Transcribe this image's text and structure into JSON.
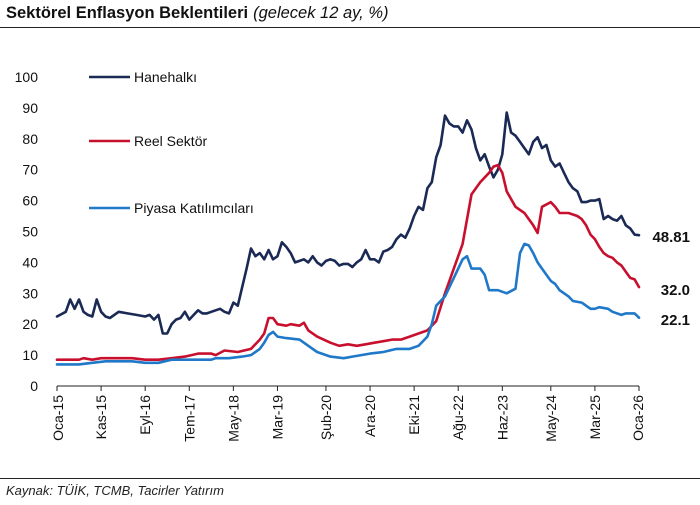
{
  "header": {
    "title": "Sektörel Enflasyon Beklentileri",
    "subtitle": "(gelecek 12 ay, %)"
  },
  "footer": {
    "source": "Kaynak: TÜİK, TCMB, Tacirler Yatırım"
  },
  "colors": {
    "hanehalki": "#1b2a55",
    "reel_sektor": "#c8102e",
    "piyasa": "#1f78c8",
    "axis": "#222222"
  },
  "chart_data": {
    "type": "line",
    "title": "Sektörel Enflasyon Beklentileri",
    "ylim": [
      0,
      100
    ],
    "yticks": [
      0,
      10,
      20,
      30,
      40,
      50,
      60,
      70,
      80,
      90,
      100
    ],
    "xlim": [
      "2015-01",
      "2026-01"
    ],
    "xticks": [
      "Oca-15",
      "Kas-15",
      "Eyl-16",
      "Tem-17",
      "May-18",
      "Mar-19",
      "Şub-20",
      "Ara-20",
      "Eki-21",
      "Ağu-22",
      "Haz-23",
      "May-24",
      "Mar-25",
      "Oca-26"
    ],
    "legend_position": "top-left",
    "grid": false,
    "series": [
      {
        "name": "Hanehalkı",
        "color": "#1b2a55",
        "end_label": "48.81",
        "points": [
          [
            "2015-01",
            22.5
          ],
          [
            "2015-03",
            24
          ],
          [
            "2015-04",
            28
          ],
          [
            "2015-05",
            25
          ],
          [
            "2015-06",
            28
          ],
          [
            "2015-07",
            24
          ],
          [
            "2015-08",
            23
          ],
          [
            "2015-09",
            22.5
          ],
          [
            "2015-10",
            28
          ],
          [
            "2015-11",
            24
          ],
          [
            "2015-12",
            22.5
          ],
          [
            "2016-01",
            22
          ],
          [
            "2016-03",
            24
          ],
          [
            "2016-05",
            23.5
          ],
          [
            "2016-07",
            23
          ],
          [
            "2016-09",
            22.5
          ],
          [
            "2016-10",
            23
          ],
          [
            "2016-11",
            21.5
          ],
          [
            "2016-12",
            23
          ],
          [
            "2017-01",
            17
          ],
          [
            "2017-02",
            17
          ],
          [
            "2017-03",
            20
          ],
          [
            "2017-04",
            21.5
          ],
          [
            "2017-05",
            22
          ],
          [
            "2017-06",
            24
          ],
          [
            "2017-07",
            21.5
          ],
          [
            "2017-08",
            23
          ],
          [
            "2017-09",
            24.5
          ],
          [
            "2017-10",
            23.5
          ],
          [
            "2017-11",
            23.5
          ],
          [
            "2017-12",
            24
          ],
          [
            "2018-02",
            25
          ],
          [
            "2018-03",
            24
          ],
          [
            "2018-04",
            23.5
          ],
          [
            "2018-05",
            27
          ],
          [
            "2018-06",
            26
          ],
          [
            "2018-07",
            32
          ],
          [
            "2018-08",
            38
          ],
          [
            "2018-09",
            44.5
          ],
          [
            "2018-10",
            42
          ],
          [
            "2018-11",
            43
          ],
          [
            "2018-12",
            41
          ],
          [
            "2019-01",
            44
          ],
          [
            "2019-02",
            41
          ],
          [
            "2019-03",
            42
          ],
          [
            "2019-04",
            46.5
          ],
          [
            "2019-05",
            45
          ],
          [
            "2019-06",
            43
          ],
          [
            "2019-07",
            40
          ],
          [
            "2019-08",
            40.5
          ],
          [
            "2019-09",
            41
          ],
          [
            "2019-10",
            40
          ],
          [
            "2019-11",
            42
          ],
          [
            "2019-12",
            40
          ],
          [
            "2020-01",
            39
          ],
          [
            "2020-02",
            40.5
          ],
          [
            "2020-03",
            41
          ],
          [
            "2020-04",
            40.5
          ],
          [
            "2020-05",
            39
          ],
          [
            "2020-06",
            39.5
          ],
          [
            "2020-07",
            39.5
          ],
          [
            "2020-08",
            38.5
          ],
          [
            "2020-09",
            40
          ],
          [
            "2020-10",
            41
          ],
          [
            "2020-11",
            44
          ],
          [
            "2020-12",
            41
          ],
          [
            "2021-01",
            41
          ],
          [
            "2021-02",
            40
          ],
          [
            "2021-03",
            43.5
          ],
          [
            "2021-04",
            44
          ],
          [
            "2021-05",
            45
          ],
          [
            "2021-06",
            47.5
          ],
          [
            "2021-07",
            49
          ],
          [
            "2021-08",
            48
          ],
          [
            "2021-09",
            51
          ],
          [
            "2021-10",
            55
          ],
          [
            "2021-11",
            58
          ],
          [
            "2021-12",
            57
          ],
          [
            "2022-01",
            64
          ],
          [
            "2022-02",
            66
          ],
          [
            "2022-03",
            74
          ],
          [
            "2022-04",
            78
          ],
          [
            "2022-05",
            87.5
          ],
          [
            "2022-06",
            85
          ],
          [
            "2022-07",
            84
          ],
          [
            "2022-08",
            84
          ],
          [
            "2022-09",
            82
          ],
          [
            "2022-10",
            86
          ],
          [
            "2022-11",
            83
          ],
          [
            "2022-12",
            77
          ],
          [
            "2023-01",
            73
          ],
          [
            "2023-02",
            75
          ],
          [
            "2023-03",
            71
          ],
          [
            "2023-04",
            67.5
          ],
          [
            "2023-05",
            70
          ],
          [
            "2023-06",
            75
          ],
          [
            "2023-07",
            88.5
          ],
          [
            "2023-08",
            82
          ],
          [
            "2023-09",
            81
          ],
          [
            "2023-10",
            79
          ],
          [
            "2023-11",
            77
          ],
          [
            "2023-12",
            75
          ],
          [
            "2024-01",
            79
          ],
          [
            "2024-02",
            80.5
          ],
          [
            "2024-03",
            77
          ],
          [
            "2024-04",
            78
          ],
          [
            "2024-05",
            73
          ],
          [
            "2024-06",
            71
          ],
          [
            "2024-07",
            72
          ],
          [
            "2024-08",
            69
          ],
          [
            "2024-09",
            66
          ],
          [
            "2024-10",
            64
          ],
          [
            "2024-11",
            63
          ],
          [
            "2024-12",
            59.5
          ],
          [
            "2025-01",
            59.5
          ],
          [
            "2025-02",
            60
          ],
          [
            "2025-03",
            60
          ],
          [
            "2025-04",
            60.5
          ],
          [
            "2025-05",
            54
          ],
          [
            "2025-06",
            55
          ],
          [
            "2025-07",
            54
          ],
          [
            "2025-08",
            53.5
          ],
          [
            "2025-09",
            55
          ],
          [
            "2025-10",
            52
          ],
          [
            "2025-11",
            51
          ],
          [
            "2025-12",
            49
          ],
          [
            "2026-01",
            48.81
          ]
        ]
      },
      {
        "name": "Reel Sektör",
        "color": "#c8102e",
        "end_label": "32.0",
        "points": [
          [
            "2015-01",
            8.5
          ],
          [
            "2015-06",
            8.5
          ],
          [
            "2015-07",
            9
          ],
          [
            "2015-09",
            8.5
          ],
          [
            "2015-11",
            9
          ],
          [
            "2016-03",
            9
          ],
          [
            "2016-06",
            9
          ],
          [
            "2016-09",
            8.5
          ],
          [
            "2016-12",
            8.5
          ],
          [
            "2017-03",
            9
          ],
          [
            "2017-06",
            9.5
          ],
          [
            "2017-09",
            10.5
          ],
          [
            "2017-12",
            10.5
          ],
          [
            "2018-01",
            10
          ],
          [
            "2018-03",
            11.5
          ],
          [
            "2018-06",
            11
          ],
          [
            "2018-09",
            12
          ],
          [
            "2018-11",
            15
          ],
          [
            "2018-12",
            17
          ],
          [
            "2019-01",
            22
          ],
          [
            "2019-02",
            22
          ],
          [
            "2019-03",
            20
          ],
          [
            "2019-05",
            19.5
          ],
          [
            "2019-06",
            20
          ],
          [
            "2019-08",
            19.5
          ],
          [
            "2019-09",
            20.5
          ],
          [
            "2019-10",
            18
          ],
          [
            "2019-12",
            16
          ],
          [
            "2020-03",
            14
          ],
          [
            "2020-05",
            13
          ],
          [
            "2020-07",
            13.5
          ],
          [
            "2020-09",
            13
          ],
          [
            "2020-11",
            13.5
          ],
          [
            "2021-01",
            14
          ],
          [
            "2021-03",
            14.5
          ],
          [
            "2021-05",
            15
          ],
          [
            "2021-07",
            15
          ],
          [
            "2021-09",
            16
          ],
          [
            "2021-11",
            17
          ],
          [
            "2022-01",
            18
          ],
          [
            "2022-03",
            21
          ],
          [
            "2022-05",
            30
          ],
          [
            "2022-07",
            38
          ],
          [
            "2022-09",
            46
          ],
          [
            "2022-11",
            62
          ],
          [
            "2023-01",
            66
          ],
          [
            "2023-03",
            69
          ],
          [
            "2023-04",
            71
          ],
          [
            "2023-05",
            71.5
          ],
          [
            "2023-06",
            69
          ],
          [
            "2023-07",
            63
          ],
          [
            "2023-09",
            58
          ],
          [
            "2023-11",
            56
          ],
          [
            "2024-01",
            52
          ],
          [
            "2024-02",
            49.5
          ],
          [
            "2024-03",
            58
          ],
          [
            "2024-05",
            59.5
          ],
          [
            "2024-06",
            58
          ],
          [
            "2024-07",
            56
          ],
          [
            "2024-09",
            56
          ],
          [
            "2024-11",
            55
          ],
          [
            "2024-12",
            54
          ],
          [
            "2025-01",
            52
          ],
          [
            "2025-02",
            49
          ],
          [
            "2025-03",
            47.5
          ],
          [
            "2025-04",
            45
          ],
          [
            "2025-05",
            43
          ],
          [
            "2025-06",
            42
          ],
          [
            "2025-07",
            41.5
          ],
          [
            "2025-08",
            40
          ],
          [
            "2025-09",
            39
          ],
          [
            "2025-10",
            37
          ],
          [
            "2025-11",
            35
          ],
          [
            "2025-12",
            34.5
          ],
          [
            "2026-01",
            32.0
          ]
        ]
      },
      {
        "name": "Piyasa Katılımcıları",
        "color": "#1f78c8",
        "end_label": "22.1",
        "points": [
          [
            "2015-01",
            7
          ],
          [
            "2015-06",
            7
          ],
          [
            "2015-09",
            7.5
          ],
          [
            "2015-12",
            8
          ],
          [
            "2016-03",
            8
          ],
          [
            "2016-06",
            8
          ],
          [
            "2016-09",
            7.5
          ],
          [
            "2016-12",
            7.5
          ],
          [
            "2017-03",
            8.5
          ],
          [
            "2017-06",
            8.5
          ],
          [
            "2017-09",
            8.5
          ],
          [
            "2017-12",
            8.5
          ],
          [
            "2018-01",
            9
          ],
          [
            "2018-04",
            9
          ],
          [
            "2018-07",
            9.5
          ],
          [
            "2018-09",
            10
          ],
          [
            "2018-11",
            12
          ],
          [
            "2018-12",
            14
          ],
          [
            "2019-01",
            16.5
          ],
          [
            "2019-02",
            17.5
          ],
          [
            "2019-03",
            16
          ],
          [
            "2019-05",
            15.5
          ],
          [
            "2019-08",
            15
          ],
          [
            "2019-10",
            13
          ],
          [
            "2019-12",
            11
          ],
          [
            "2020-03",
            9.5
          ],
          [
            "2020-06",
            9
          ],
          [
            "2020-08",
            9.5
          ],
          [
            "2020-10",
            10
          ],
          [
            "2020-12",
            10.5
          ],
          [
            "2021-03",
            11
          ],
          [
            "2021-06",
            12
          ],
          [
            "2021-09",
            12
          ],
          [
            "2021-11",
            13
          ],
          [
            "2022-01",
            16
          ],
          [
            "2022-02",
            20
          ],
          [
            "2022-03",
            26
          ],
          [
            "2022-05",
            29
          ],
          [
            "2022-07",
            35
          ],
          [
            "2022-09",
            41
          ],
          [
            "2022-10",
            42
          ],
          [
            "2022-11",
            38
          ],
          [
            "2023-01",
            38
          ],
          [
            "2023-02",
            36
          ],
          [
            "2023-03",
            31
          ],
          [
            "2023-05",
            31
          ],
          [
            "2023-07",
            30
          ],
          [
            "2023-09",
            31.5
          ],
          [
            "2023-10",
            43
          ],
          [
            "2023-11",
            46
          ],
          [
            "2023-12",
            45.5
          ],
          [
            "2024-01",
            43
          ],
          [
            "2024-02",
            40
          ],
          [
            "2024-03",
            38
          ],
          [
            "2024-05",
            34
          ],
          [
            "2024-06",
            33
          ],
          [
            "2024-07",
            31
          ],
          [
            "2024-09",
            29
          ],
          [
            "2024-10",
            27.5
          ],
          [
            "2024-12",
            27
          ],
          [
            "2025-01",
            26
          ],
          [
            "2025-02",
            25
          ],
          [
            "2025-03",
            25
          ],
          [
            "2025-04",
            25.5
          ],
          [
            "2025-06",
            25
          ],
          [
            "2025-07",
            24
          ],
          [
            "2025-09",
            23
          ],
          [
            "2025-10",
            23.5
          ],
          [
            "2025-11",
            23.5
          ],
          [
            "2025-12",
            23.5
          ],
          [
            "2026-01",
            22.1
          ]
        ]
      }
    ]
  }
}
